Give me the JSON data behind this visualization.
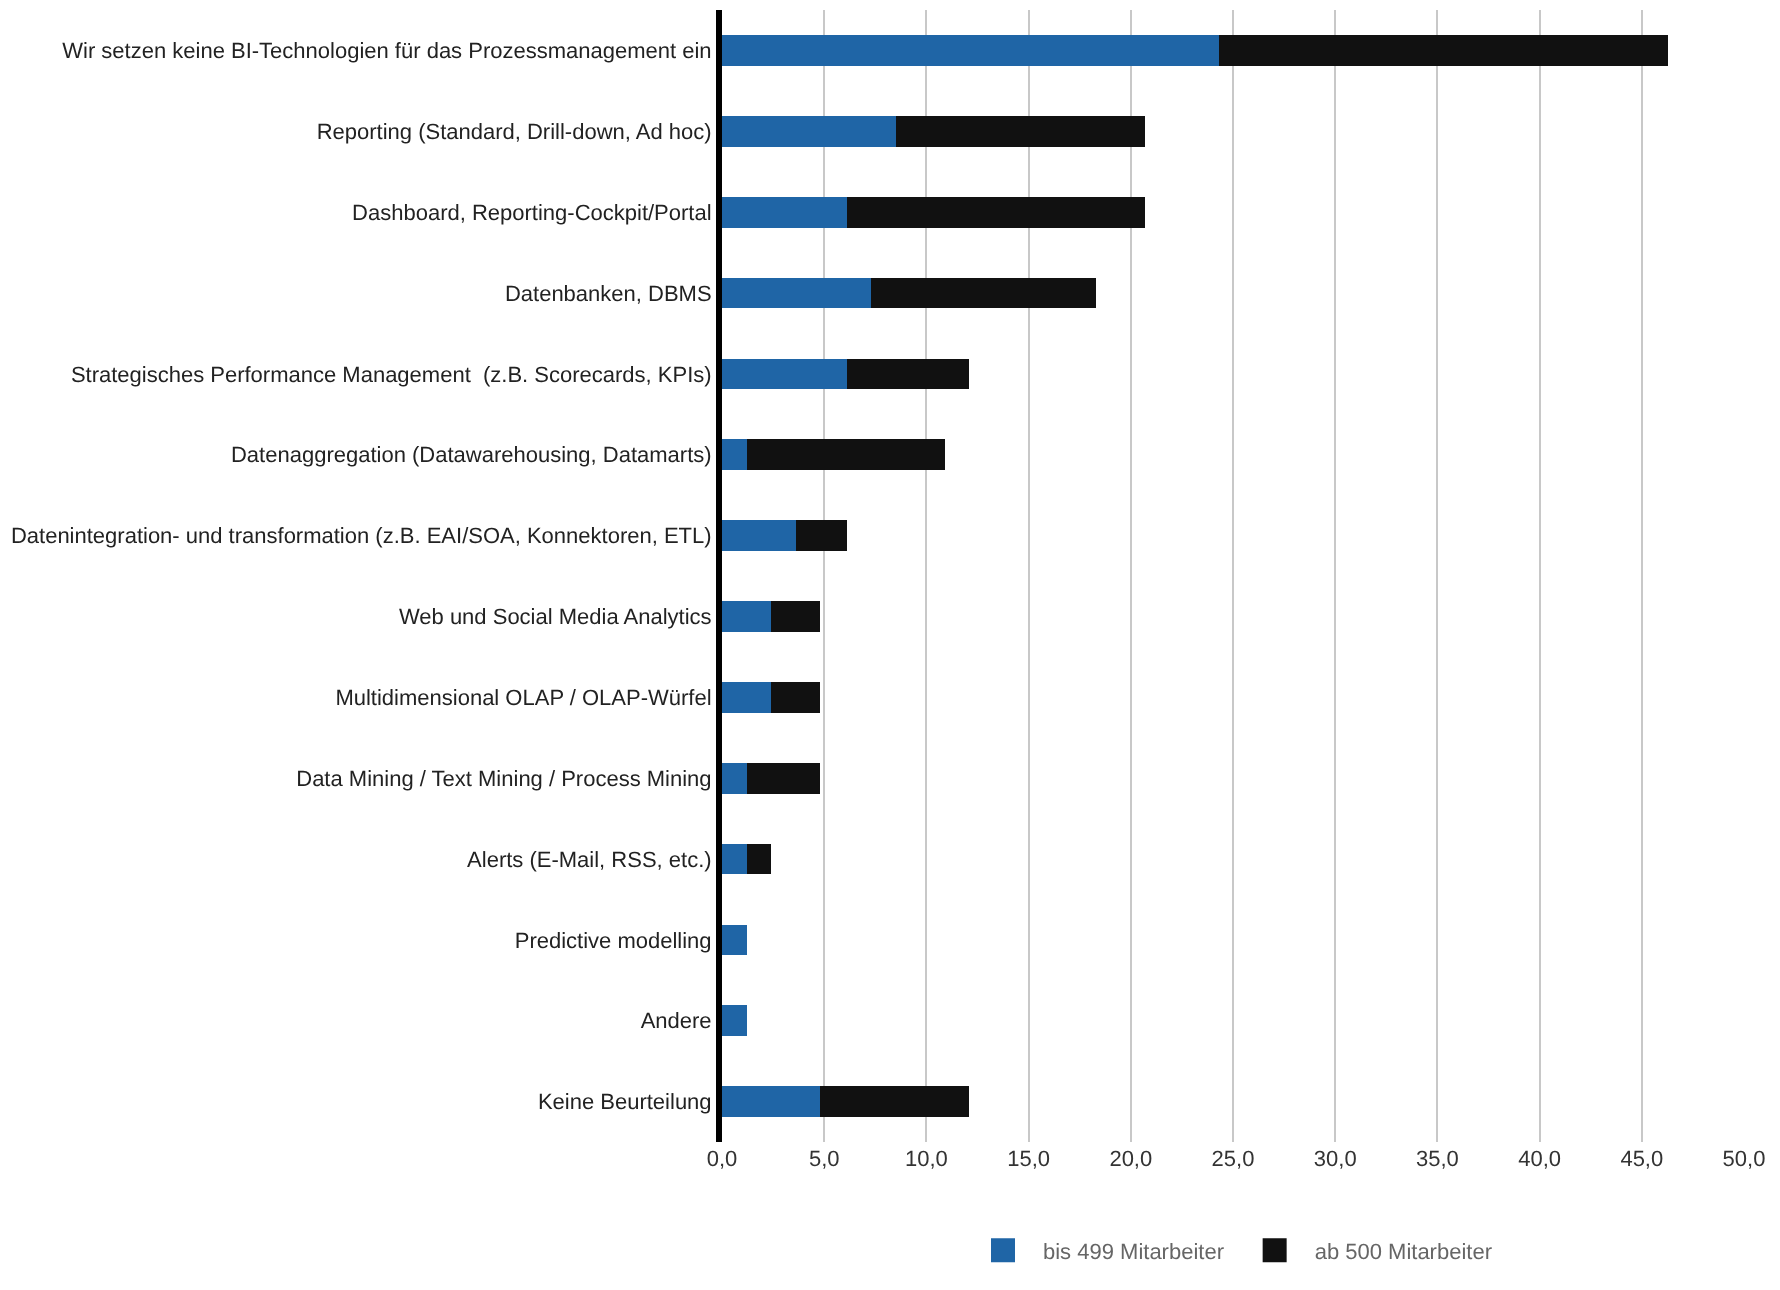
{
  "chart_data": {
    "type": "bar",
    "orientation": "horizontal",
    "stacked": true,
    "categories": [
      "Wir setzen keine BI-Technologien für das Prozessmanagement ein",
      "Reporting (Standard, Drill-down, Ad hoc)",
      "Dashboard, Reporting-Cockpit/Portal",
      "Datenbanken, DBMS",
      "Strategisches Performance Management  (z.B. Scorecards, KPIs)",
      "Datenaggregation (Datawarehousing, Datamarts)",
      "Datenintegration- und transformation (z.B. EAI/SOA, Konnektoren, ETL)",
      "Web und Social Media Analytics",
      "Multidimensional OLAP / OLAP-Würfel",
      "Data Mining / Text Mining / Process Mining",
      "Alerts (E-Mail, RSS, etc.)",
      "Predictive modelling",
      "Andere",
      "Keine Beurteilung"
    ],
    "series": [
      {
        "name": "bis 499 Mitarbeiter",
        "color": "#1f65a6",
        "values": [
          24.3,
          8.5,
          6.1,
          7.3,
          6.1,
          1.2,
          3.6,
          2.4,
          2.4,
          1.2,
          1.2,
          1.2,
          1.2,
          4.8
        ]
      },
      {
        "name": "ab 500 Mitarbeiter",
        "color": "#111111",
        "values": [
          22.0,
          12.2,
          14.6,
          11.0,
          6.0,
          9.7,
          2.5,
          2.4,
          2.4,
          3.6,
          1.2,
          0,
          0,
          7.3
        ]
      }
    ],
    "xlim": [
      0,
      50
    ],
    "xticks": [
      {
        "value": 0,
        "label": "0,0"
      },
      {
        "value": 5,
        "label": "5,0"
      },
      {
        "value": 10,
        "label": "10,0"
      },
      {
        "value": 15,
        "label": "15,0"
      },
      {
        "value": 20,
        "label": "20,0"
      },
      {
        "value": 25,
        "label": "25,0"
      },
      {
        "value": 30,
        "label": "30,0"
      },
      {
        "value": 35,
        "label": "35,0"
      },
      {
        "value": 40,
        "label": "40,0"
      },
      {
        "value": 45,
        "label": "45,0"
      },
      {
        "value": 50,
        "label": "50,0"
      }
    ],
    "grid": "x",
    "legend": "bottom"
  }
}
